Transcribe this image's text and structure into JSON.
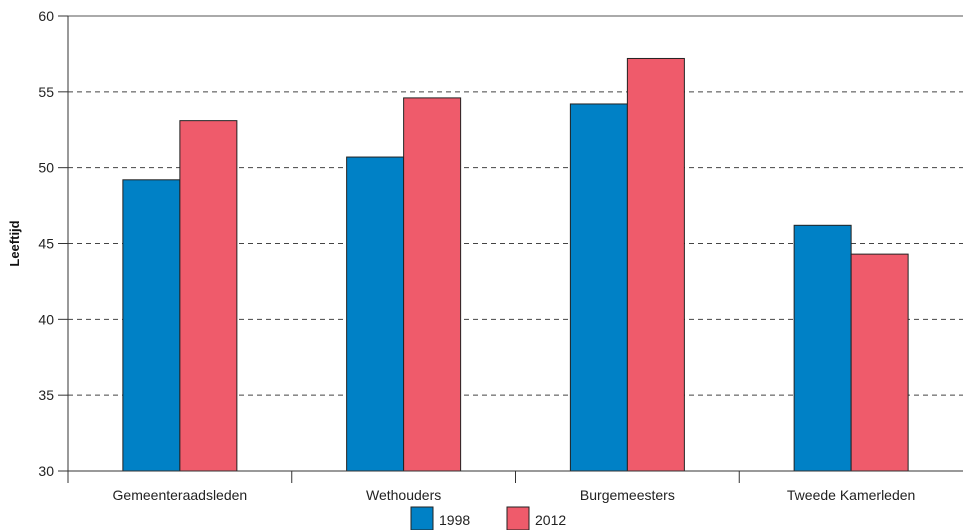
{
  "chart_data": {
    "type": "bar",
    "title": "",
    "xlabel": "",
    "ylabel": "Leeftijd",
    "categories": [
      "Gemeenteraadsleden",
      "Wethouders",
      "Burgemeesters",
      "Tweede Kamerleden"
    ],
    "series": [
      {
        "name": "1998",
        "color": "#0081c6",
        "values": [
          49.2,
          50.7,
          54.2,
          46.2
        ]
      },
      {
        "name": "2012",
        "color": "#ef5b6b",
        "values": [
          53.1,
          54.6,
          57.2,
          44.3
        ]
      }
    ],
    "ylim": [
      30,
      60
    ],
    "yticks": [
      30,
      35,
      40,
      45,
      50,
      55,
      60
    ],
    "grid": "dashed-horizontal",
    "legend_position": "bottom"
  }
}
